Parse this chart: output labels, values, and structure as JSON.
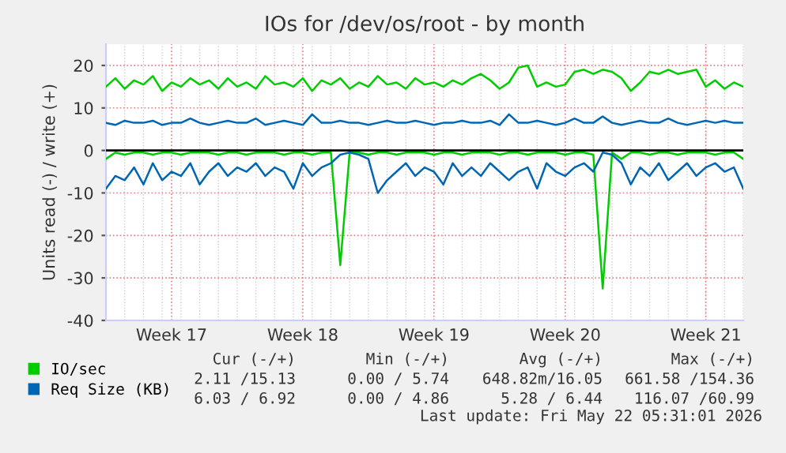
{
  "chart_data": {
    "type": "line",
    "title": "IOs for /dev/os/root - by month",
    "ylabel": "Units read (-) / write (+)",
    "categories": [
      null,
      null,
      null,
      null,
      null,
      null,
      null,
      "Week 17",
      null,
      null,
      null,
      null,
      null,
      null,
      null,
      null,
      null,
      null,
      null,
      null,
      null,
      "Week 18",
      null,
      null,
      null,
      null,
      null,
      null,
      null,
      null,
      null,
      null,
      null,
      null,
      null,
      "Week 19",
      null,
      null,
      null,
      null,
      null,
      null,
      null,
      null,
      null,
      null,
      null,
      null,
      null,
      "Week 20",
      null,
      null,
      null,
      null,
      null,
      null,
      null,
      null,
      null,
      null,
      null,
      null,
      null,
      null,
      "Week 21",
      null,
      null,
      null,
      null
    ],
    "series": [
      {
        "name": "IO/sec",
        "color": "#00cc00",
        "values": [
          15,
          17,
          14.5,
          16.5,
          15.5,
          17.5,
          14,
          16,
          15,
          17,
          15.5,
          16.5,
          14.5,
          17,
          15,
          16,
          14.5,
          17.5,
          15.5,
          16,
          15,
          17,
          14,
          16.5,
          15.5,
          17,
          14.5,
          16,
          15,
          17.5,
          15.5,
          16,
          14.5,
          17,
          15.5,
          16,
          15,
          16.5,
          15.5,
          17,
          18,
          16.5,
          14.5,
          16,
          19.5,
          20,
          15,
          16,
          15,
          15.5,
          18.5,
          19,
          18,
          19,
          18.5,
          17,
          14,
          16,
          18.5,
          18,
          19,
          18,
          18.5,
          19,
          15,
          16.5,
          14.5,
          16,
          15
        ]
      },
      {
        "color": "#00cc00",
        "values": [
          -2,
          -0.5,
          -1,
          -0.5,
          -0.5,
          -1,
          -0.5,
          -0.5,
          -1,
          -0.5,
          -0.5,
          -0.5,
          -1,
          -0.5,
          -0.5,
          -1,
          -0.5,
          -0.5,
          -0.5,
          -1,
          -0.5,
          -0.5,
          -1,
          -0.5,
          -0.5,
          -27,
          -0.5,
          -0.5,
          -1,
          -0.5,
          -0.5,
          -1,
          -0.5,
          -0.5,
          -0.5,
          -1,
          -0.5,
          -0.5,
          -1,
          -0.5,
          -0.5,
          -0.5,
          -1,
          -0.5,
          -0.5,
          -1,
          -0.5,
          -0.5,
          -0.5,
          -1,
          -0.5,
          -0.5,
          -1,
          -32.5,
          -0.5,
          -2,
          -0.5,
          -0.5,
          -1,
          -0.5,
          -0.5,
          -1,
          -0.5,
          -0.5,
          -0.5,
          -1,
          -0.5,
          -0.5,
          -2
        ]
      },
      {
        "name": "Req Size (KB)",
        "color": "#0066b3",
        "values": [
          6.5,
          6,
          7,
          6.5,
          6.5,
          7,
          6,
          6.5,
          6.5,
          7.5,
          6.5,
          6,
          6.5,
          7,
          6.5,
          6.5,
          7.5,
          6,
          6.5,
          7,
          6.5,
          6,
          8.5,
          6.5,
          6.5,
          7,
          6.5,
          6.5,
          6,
          6.5,
          7,
          6.5,
          6.5,
          7,
          6.5,
          6,
          6.5,
          6.5,
          7,
          6.5,
          6.5,
          7,
          6,
          8.5,
          6.5,
          6.5,
          7,
          6.5,
          6,
          6.5,
          7.5,
          6.5,
          6.5,
          8,
          6.5,
          6,
          6.5,
          7,
          6.5,
          6.5,
          7.5,
          6.5,
          6,
          6.5,
          7,
          6.5,
          7,
          6.5,
          6.5
        ]
      },
      {
        "color": "#0066b3",
        "values": [
          -9,
          -6,
          -7,
          -4,
          -8,
          -3,
          -7,
          -5,
          -6,
          -3,
          -8,
          -5,
          -3,
          -6,
          -4,
          -5,
          -3,
          -6,
          -4,
          -5,
          -9,
          -3,
          -6,
          -4,
          -3,
          -1,
          -0.5,
          -1,
          -2,
          -10,
          -7,
          -5,
          -3,
          -6,
          -4,
          -5,
          -8,
          -3,
          -6,
          -4,
          -6,
          -3,
          -5,
          -7,
          -5,
          -4,
          -9,
          -3,
          -5,
          -6,
          -4,
          -3,
          -5,
          -0.5,
          -1,
          -3,
          -8,
          -4,
          -6,
          -3,
          -7,
          -5,
          -3,
          -6,
          -4,
          -3,
          -5,
          -4,
          -9
        ]
      }
    ],
    "ylim": [
      -40,
      25
    ],
    "yticks": [
      -40,
      -30,
      -20,
      -10,
      0,
      10,
      20
    ],
    "ref_lines": [
      {
        "axis": "y",
        "value": 0,
        "color": "#000000"
      }
    ],
    "grid": true,
    "legend": "bottom",
    "annotations": [
      "Cur (-/+)",
      "Min (-/+)",
      "Avg (-/+)",
      "Max (-/+)",
      "2.11 /15.13",
      "0.00 / 5.74",
      "648.82m/16.05",
      "661.58 /154.36",
      "6.03 / 6.92",
      "0.00 / 4.86",
      "5.28 / 6.44",
      "116.07 /60.99",
      "Last update: Fri May 22 05:31:01 2026"
    ]
  }
}
